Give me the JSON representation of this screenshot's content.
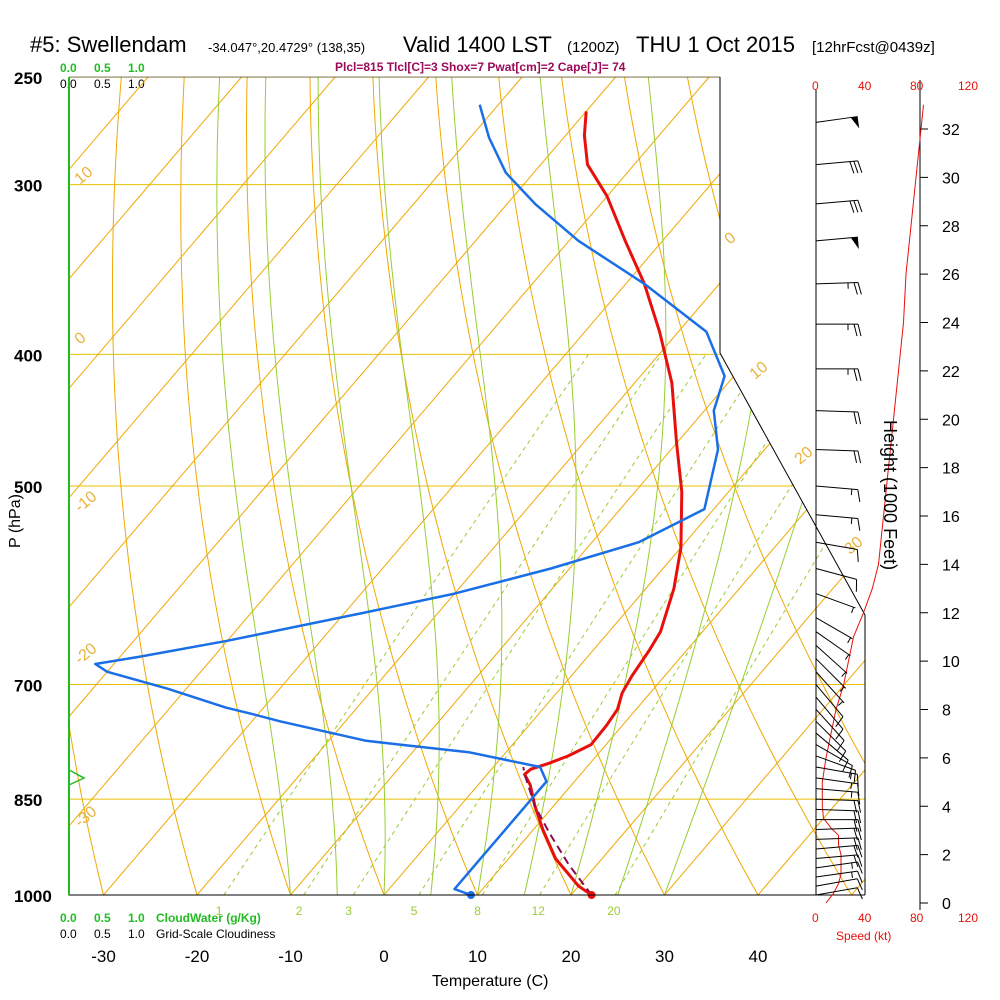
{
  "header": {
    "station": "#5: Swellendam",
    "coords": "-34.047°,20.4729° (138,35)",
    "valid": "Valid 1400 LST",
    "zulu": "(1200Z)",
    "date": "THU 1 Oct 2015",
    "forecast": "[12hrFcst@0439z]",
    "indices": "Plcl=815 Tlcl[C]=3 Shox=7 Pwat[cm]=2 Cape[J]= 74"
  },
  "colors": {
    "temperature": "#e8100c",
    "dewpoint": "#1a6fe6",
    "parcel": "#8b0a50",
    "isotherm_dry": "#f0a800",
    "moist": "#99cc33",
    "grid": "#e8c000",
    "cloud": "#22bb22",
    "speed": "#e8100c"
  },
  "legend_top": {
    "cloudwater_ticks": [
      "0.0",
      "0.5",
      "1.0"
    ],
    "cloudiness_ticks": [
      "0.0",
      "0.5",
      "1.0"
    ]
  },
  "legend_bottom": {
    "cloudwater_ticks": [
      "0.0",
      "0.5",
      "1.0"
    ],
    "cloudwater_label": "CloudWater (g/Kg)",
    "cloudiness_ticks": [
      "0.0",
      "0.5",
      "1.0"
    ],
    "cloudiness_label": "Grid-Scale Cloudiness"
  },
  "speed_axis": {
    "ticks": [
      "0",
      "40",
      "80",
      "120"
    ],
    "label": "Speed (kt)"
  },
  "chart_data": {
    "type": "line",
    "xlabel": "Temperature (C)",
    "ylabel": "P (hPa)",
    "y2label": "Height (1000 Feet)",
    "x_ticks": [
      -30,
      -20,
      -10,
      0,
      10,
      20,
      30,
      40
    ],
    "y_ticks": [
      250,
      300,
      400,
      500,
      700,
      850,
      1000
    ],
    "height_ticks": [
      0,
      2,
      4,
      6,
      8,
      10,
      12,
      14,
      16,
      18,
      20,
      22,
      24,
      26,
      28,
      30,
      32
    ],
    "dry_adiabat_labels": [
      "10",
      "0",
      "-10",
      "-20",
      "-30",
      "0",
      "10",
      "20",
      "30"
    ],
    "mixing_ratio_labels": [
      "1",
      "2",
      "3",
      "5",
      "8",
      "12",
      "20"
    ],
    "series": [
      {
        "name": "temperature",
        "points": [
          [
            22.2,
            1000
          ],
          [
            20,
            985
          ],
          [
            15,
            940
          ],
          [
            11,
            895
          ],
          [
            8,
            860
          ],
          [
            5.6,
            830
          ],
          [
            4,
            815
          ],
          [
            4.2,
            808
          ],
          [
            5.6,
            800
          ],
          [
            7,
            790
          ],
          [
            8.4,
            775
          ],
          [
            8.3,
            750
          ],
          [
            8,
            730
          ],
          [
            7,
            710
          ],
          [
            6.5,
            690
          ],
          [
            6,
            660
          ],
          [
            5.5,
            640
          ],
          [
            3,
            595
          ],
          [
            0,
            555
          ],
          [
            -5,
            505
          ],
          [
            -10,
            465
          ],
          [
            -16,
            420
          ],
          [
            -22,
            385
          ],
          [
            -28,
            355
          ],
          [
            -34,
            330
          ],
          [
            -40,
            306
          ],
          [
            -45,
            290
          ],
          [
            -48,
            276
          ],
          [
            -50,
            265
          ]
        ]
      },
      {
        "name": "dewpoint",
        "points": [
          [
            9.3,
            1000
          ],
          [
            7,
            990
          ],
          [
            7,
            960
          ],
          [
            7,
            930
          ],
          [
            7,
            900
          ],
          [
            7,
            870
          ],
          [
            7,
            845
          ],
          [
            7,
            825
          ],
          [
            5,
            805
          ],
          [
            -4,
            785
          ],
          [
            -16,
            770
          ],
          [
            -27,
            745
          ],
          [
            -31,
            735
          ],
          [
            -34,
            728
          ],
          [
            -42,
            705
          ],
          [
            -50,
            685
          ],
          [
            -52,
            676
          ],
          [
            -48,
            668
          ],
          [
            -40,
            650
          ],
          [
            -28,
            620
          ],
          [
            -20,
            600
          ],
          [
            -12,
            575
          ],
          [
            -5,
            550
          ],
          [
            -1,
            520
          ],
          [
            -5,
            470
          ],
          [
            -9,
            440
          ],
          [
            -11,
            415
          ],
          [
            -17,
            385
          ],
          [
            -28,
            355
          ],
          [
            -39,
            330
          ],
          [
            -47,
            310
          ],
          [
            -53,
            294
          ],
          [
            -58,
            277
          ],
          [
            -62,
            262
          ]
        ]
      },
      {
        "name": "parcel",
        "points": [
          [
            22.2,
            1000
          ],
          [
            17,
            950
          ],
          [
            12,
            900
          ],
          [
            8,
            860
          ],
          [
            4,
            815
          ],
          [
            3.2,
            805
          ]
        ]
      }
    ],
    "surface_temperature": 22.2,
    "surface_dewpoint": 9.3
  },
  "wind_barbs": [
    {
      "p": 1000,
      "dir": 260,
      "spd": 12
    },
    {
      "p": 985,
      "dir": 260,
      "spd": 14
    },
    {
      "p": 970,
      "dir": 262,
      "spd": 16
    },
    {
      "p": 955,
      "dir": 262,
      "spd": 18
    },
    {
      "p": 940,
      "dir": 265,
      "spd": 20
    },
    {
      "p": 925,
      "dir": 265,
      "spd": 20
    },
    {
      "p": 910,
      "dir": 268,
      "spd": 22
    },
    {
      "p": 895,
      "dir": 268,
      "spd": 22
    },
    {
      "p": 880,
      "dir": 270,
      "spd": 22
    },
    {
      "p": 865,
      "dir": 272,
      "spd": 20
    },
    {
      "p": 850,
      "dir": 272,
      "spd": 20
    },
    {
      "p": 835,
      "dir": 275,
      "spd": 18
    },
    {
      "p": 820,
      "dir": 278,
      "spd": 18
    },
    {
      "p": 805,
      "dir": 280,
      "spd": 16
    },
    {
      "p": 790,
      "dir": 290,
      "spd": 14
    },
    {
      "p": 775,
      "dir": 300,
      "spd": 12
    },
    {
      "p": 760,
      "dir": 310,
      "spd": 10
    },
    {
      "p": 745,
      "dir": 315,
      "spd": 10
    },
    {
      "p": 730,
      "dir": 318,
      "spd": 10
    },
    {
      "p": 715,
      "dir": 320,
      "spd": 10
    },
    {
      "p": 700,
      "dir": 320,
      "spd": 10
    },
    {
      "p": 685,
      "dir": 318,
      "spd": 9
    },
    {
      "p": 670,
      "dir": 315,
      "spd": 9
    },
    {
      "p": 655,
      "dir": 312,
      "spd": 9
    },
    {
      "p": 640,
      "dir": 305,
      "spd": 8
    },
    {
      "p": 625,
      "dir": 300,
      "spd": 8
    },
    {
      "p": 600,
      "dir": 290,
      "spd": 8
    },
    {
      "p": 575,
      "dir": 285,
      "spd": 10
    },
    {
      "p": 550,
      "dir": 280,
      "spd": 12
    },
    {
      "p": 525,
      "dir": 275,
      "spd": 15
    },
    {
      "p": 500,
      "dir": 275,
      "spd": 18
    },
    {
      "p": 470,
      "dir": 272,
      "spd": 20
    },
    {
      "p": 440,
      "dir": 272,
      "spd": 22
    },
    {
      "p": 410,
      "dir": 270,
      "spd": 25
    },
    {
      "p": 380,
      "dir": 270,
      "spd": 25
    },
    {
      "p": 355,
      "dir": 268,
      "spd": 28
    },
    {
      "p": 330,
      "dir": 265,
      "spd": 50
    },
    {
      "p": 310,
      "dir": 265,
      "spd": 30
    },
    {
      "p": 290,
      "dir": 265,
      "spd": 30
    },
    {
      "p": 270,
      "dir": 262,
      "spd": 50
    }
  ],
  "speed_profile": [
    [
      0,
      8
    ],
    [
      400,
      14
    ],
    [
      800,
      18
    ],
    [
      1200,
      20
    ],
    [
      1600,
      20
    ],
    [
      2000,
      20
    ],
    [
      2400,
      18
    ],
    [
      2800,
      18
    ],
    [
      3100,
      12
    ],
    [
      3300,
      9
    ],
    [
      3500,
      6
    ],
    [
      4000,
      5
    ],
    [
      5000,
      5
    ],
    [
      6000,
      8
    ],
    [
      7000,
      12
    ],
    [
      8000,
      16
    ],
    [
      9000,
      22
    ],
    [
      10000,
      26
    ],
    [
      11000,
      30
    ],
    [
      12000,
      38
    ],
    [
      13000,
      45
    ],
    [
      14000,
      50
    ],
    [
      16000,
      54
    ],
    [
      18000,
      58
    ],
    [
      20000,
      62
    ],
    [
      22000,
      66
    ],
    [
      24000,
      70
    ],
    [
      26000,
      72
    ],
    [
      28000,
      76
    ],
    [
      30000,
      80
    ],
    [
      32000,
      84
    ],
    [
      33000,
      86
    ]
  ]
}
